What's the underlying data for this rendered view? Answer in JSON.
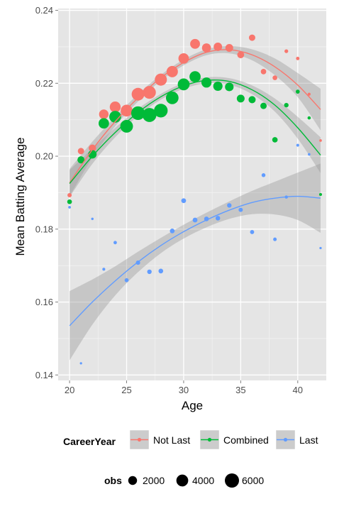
{
  "chart_data": {
    "type": "scatter",
    "xlabel": "Age",
    "ylabel": "Mean Batting Average",
    "xlim": [
      19.0,
      42.5
    ],
    "ylim": [
      0.1385,
      0.2405
    ],
    "x_ticks": [
      20,
      25,
      30,
      35,
      40
    ],
    "y_ticks": [
      0.14,
      0.16,
      0.18,
      0.2,
      0.22,
      0.24
    ],
    "x_tick_labels": [
      "20",
      "25",
      "30",
      "35",
      "40"
    ],
    "y_tick_labels": [
      "0.14",
      "0.16",
      "0.18",
      "0.20",
      "0.22",
      "0.24"
    ],
    "grid": true,
    "legend_placement": "bottom",
    "series": [
      {
        "name": "Not Last",
        "color": "#F8766D",
        "points": [
          {
            "x": 20,
            "y": 0.1893,
            "obs": 300
          },
          {
            "x": 21,
            "y": 0.2014,
            "obs": 900
          },
          {
            "x": 22,
            "y": 0.2022,
            "obs": 1300
          },
          {
            "x": 23,
            "y": 0.2115,
            "obs": 2400
          },
          {
            "x": 24,
            "y": 0.2135,
            "obs": 3300
          },
          {
            "x": 25,
            "y": 0.2125,
            "obs": 4000
          },
          {
            "x": 26,
            "y": 0.217,
            "obs": 4700
          },
          {
            "x": 27,
            "y": 0.2175,
            "obs": 4800
          },
          {
            "x": 28,
            "y": 0.221,
            "obs": 4200
          },
          {
            "x": 29,
            "y": 0.2232,
            "obs": 3600
          },
          {
            "x": 30,
            "y": 0.2268,
            "obs": 3000
          },
          {
            "x": 31,
            "y": 0.2308,
            "obs": 2600
          },
          {
            "x": 32,
            "y": 0.2297,
            "obs": 2100
          },
          {
            "x": 33,
            "y": 0.23,
            "obs": 1800
          },
          {
            "x": 34,
            "y": 0.2297,
            "obs": 1500
          },
          {
            "x": 35,
            "y": 0.2278,
            "obs": 1100
          },
          {
            "x": 36,
            "y": 0.2325,
            "obs": 900
          },
          {
            "x": 37,
            "y": 0.2232,
            "obs": 600
          },
          {
            "x": 38,
            "y": 0.2215,
            "obs": 400
          },
          {
            "x": 39,
            "y": 0.2288,
            "obs": 200
          },
          {
            "x": 40,
            "y": 0.2268,
            "obs": 150
          },
          {
            "x": 41,
            "y": 0.217,
            "obs": 80
          },
          {
            "x": 42,
            "y": 0.2043,
            "obs": 50
          }
        ],
        "fit": [
          {
            "x": 20,
            "y": 0.1927
          },
          {
            "x": 22,
            "y": 0.2018
          },
          {
            "x": 24,
            "y": 0.2095
          },
          {
            "x": 26,
            "y": 0.216
          },
          {
            "x": 28,
            "y": 0.2215
          },
          {
            "x": 30,
            "y": 0.2257
          },
          {
            "x": 32,
            "y": 0.2285
          },
          {
            "x": 34,
            "y": 0.2292
          },
          {
            "x": 36,
            "y": 0.2278
          },
          {
            "x": 38,
            "y": 0.2245
          },
          {
            "x": 40,
            "y": 0.2195
          },
          {
            "x": 42,
            "y": 0.2128
          }
        ],
        "band_upper": [
          0.1965,
          0.204,
          0.2108,
          0.217,
          0.2223,
          0.2265,
          0.2293,
          0.2302,
          0.2293,
          0.2268,
          0.2228,
          0.2185
        ],
        "band_lower": [
          0.189,
          0.1996,
          0.2082,
          0.215,
          0.2207,
          0.2249,
          0.2277,
          0.2282,
          0.2263,
          0.2222,
          0.2162,
          0.2071
        ]
      },
      {
        "name": "Combined",
        "color": "#00BA38",
        "points": [
          {
            "x": 20,
            "y": 0.1875,
            "obs": 400
          },
          {
            "x": 21,
            "y": 0.199,
            "obs": 1200
          },
          {
            "x": 22,
            "y": 0.2005,
            "obs": 1800
          },
          {
            "x": 23,
            "y": 0.209,
            "obs": 3000
          },
          {
            "x": 24,
            "y": 0.2108,
            "obs": 4000
          },
          {
            "x": 25,
            "y": 0.2082,
            "obs": 4700
          },
          {
            "x": 26,
            "y": 0.2118,
            "obs": 5500
          },
          {
            "x": 27,
            "y": 0.2113,
            "obs": 5800
          },
          {
            "x": 28,
            "y": 0.2125,
            "obs": 5500
          },
          {
            "x": 29,
            "y": 0.216,
            "obs": 4600
          },
          {
            "x": 30,
            "y": 0.2197,
            "obs": 4000
          },
          {
            "x": 31,
            "y": 0.2218,
            "obs": 3500
          },
          {
            "x": 32,
            "y": 0.2202,
            "obs": 2800
          },
          {
            "x": 33,
            "y": 0.2192,
            "obs": 2300
          },
          {
            "x": 34,
            "y": 0.219,
            "obs": 1900
          },
          {
            "x": 35,
            "y": 0.2158,
            "obs": 1500
          },
          {
            "x": 36,
            "y": 0.2155,
            "obs": 1200
          },
          {
            "x": 37,
            "y": 0.2138,
            "obs": 900
          },
          {
            "x": 38,
            "y": 0.2045,
            "obs": 600
          },
          {
            "x": 39,
            "y": 0.214,
            "obs": 350
          },
          {
            "x": 40,
            "y": 0.2177,
            "obs": 250
          },
          {
            "x": 41,
            "y": 0.2105,
            "obs": 120
          },
          {
            "x": 42,
            "y": 0.1895,
            "obs": 80
          }
        ],
        "fit": [
          {
            "x": 20,
            "y": 0.1925
          },
          {
            "x": 22,
            "y": 0.2
          },
          {
            "x": 24,
            "y": 0.2065
          },
          {
            "x": 26,
            "y": 0.212
          },
          {
            "x": 28,
            "y": 0.2163
          },
          {
            "x": 30,
            "y": 0.2193
          },
          {
            "x": 32,
            "y": 0.2208
          },
          {
            "x": 34,
            "y": 0.2205
          },
          {
            "x": 36,
            "y": 0.2182
          },
          {
            "x": 38,
            "y": 0.214
          },
          {
            "x": 40,
            "y": 0.2078
          },
          {
            "x": 42,
            "y": 0.2003
          }
        ],
        "band_upper": [
          0.1962,
          0.2021,
          0.2078,
          0.213,
          0.2171,
          0.2201,
          0.2216,
          0.2214,
          0.2194,
          0.2158,
          0.2108,
          0.2052
        ],
        "band_lower": [
          0.1888,
          0.1979,
          0.2052,
          0.211,
          0.2155,
          0.2185,
          0.22,
          0.2196,
          0.217,
          0.2122,
          0.2048,
          0.1954
        ]
      },
      {
        "name": "Last",
        "color": "#619CFF",
        "points": [
          {
            "x": 20,
            "y": 0.186,
            "obs": 60
          },
          {
            "x": 21,
            "y": 0.1432,
            "obs": 30
          },
          {
            "x": 22,
            "y": 0.1828,
            "obs": 40
          },
          {
            "x": 23,
            "y": 0.169,
            "obs": 80
          },
          {
            "x": 24,
            "y": 0.1763,
            "obs": 150
          },
          {
            "x": 25,
            "y": 0.166,
            "obs": 250
          },
          {
            "x": 26,
            "y": 0.1708,
            "obs": 300
          },
          {
            "x": 27,
            "y": 0.1683,
            "obs": 350
          },
          {
            "x": 28,
            "y": 0.1685,
            "obs": 400
          },
          {
            "x": 29,
            "y": 0.1795,
            "obs": 420
          },
          {
            "x": 30,
            "y": 0.1878,
            "obs": 430
          },
          {
            "x": 31,
            "y": 0.1825,
            "obs": 420
          },
          {
            "x": 32,
            "y": 0.1828,
            "obs": 400
          },
          {
            "x": 33,
            "y": 0.183,
            "obs": 380
          },
          {
            "x": 34,
            "y": 0.1865,
            "obs": 350
          },
          {
            "x": 35,
            "y": 0.1853,
            "obs": 300
          },
          {
            "x": 36,
            "y": 0.1792,
            "obs": 270
          },
          {
            "x": 37,
            "y": 0.1948,
            "obs": 220
          },
          {
            "x": 38,
            "y": 0.1772,
            "obs": 170
          },
          {
            "x": 39,
            "y": 0.1888,
            "obs": 120
          },
          {
            "x": 40,
            "y": 0.203,
            "obs": 80
          },
          {
            "x": 41,
            "y": 0.2005,
            "obs": 50
          },
          {
            "x": 42,
            "y": 0.1748,
            "obs": 30
          }
        ],
        "fit": [
          {
            "x": 20,
            "y": 0.1535
          },
          {
            "x": 22,
            "y": 0.16
          },
          {
            "x": 24,
            "y": 0.1658
          },
          {
            "x": 26,
            "y": 0.171
          },
          {
            "x": 28,
            "y": 0.1755
          },
          {
            "x": 30,
            "y": 0.1793
          },
          {
            "x": 32,
            "y": 0.1825
          },
          {
            "x": 34,
            "y": 0.1852
          },
          {
            "x": 36,
            "y": 0.1873
          },
          {
            "x": 38,
            "y": 0.1885
          },
          {
            "x": 40,
            "y": 0.189
          },
          {
            "x": 42,
            "y": 0.1885
          }
        ],
        "band_upper": [
          0.163,
          0.1662,
          0.1698,
          0.1738,
          0.1776,
          0.1812,
          0.1845,
          0.1876,
          0.1905,
          0.193,
          0.1955,
          0.198
        ],
        "band_lower": [
          0.144,
          0.1538,
          0.1618,
          0.1682,
          0.1734,
          0.1774,
          0.1805,
          0.1828,
          0.1841,
          0.184,
          0.1825,
          0.179
        ]
      }
    ],
    "legend_color": {
      "title": "CareerYear",
      "items": [
        "Not Last",
        "Combined",
        "Last"
      ]
    },
    "legend_size": {
      "title": "obs",
      "values": [
        2000,
        4000,
        6000
      ],
      "labels": [
        "2000",
        "4000",
        "6000"
      ]
    }
  }
}
